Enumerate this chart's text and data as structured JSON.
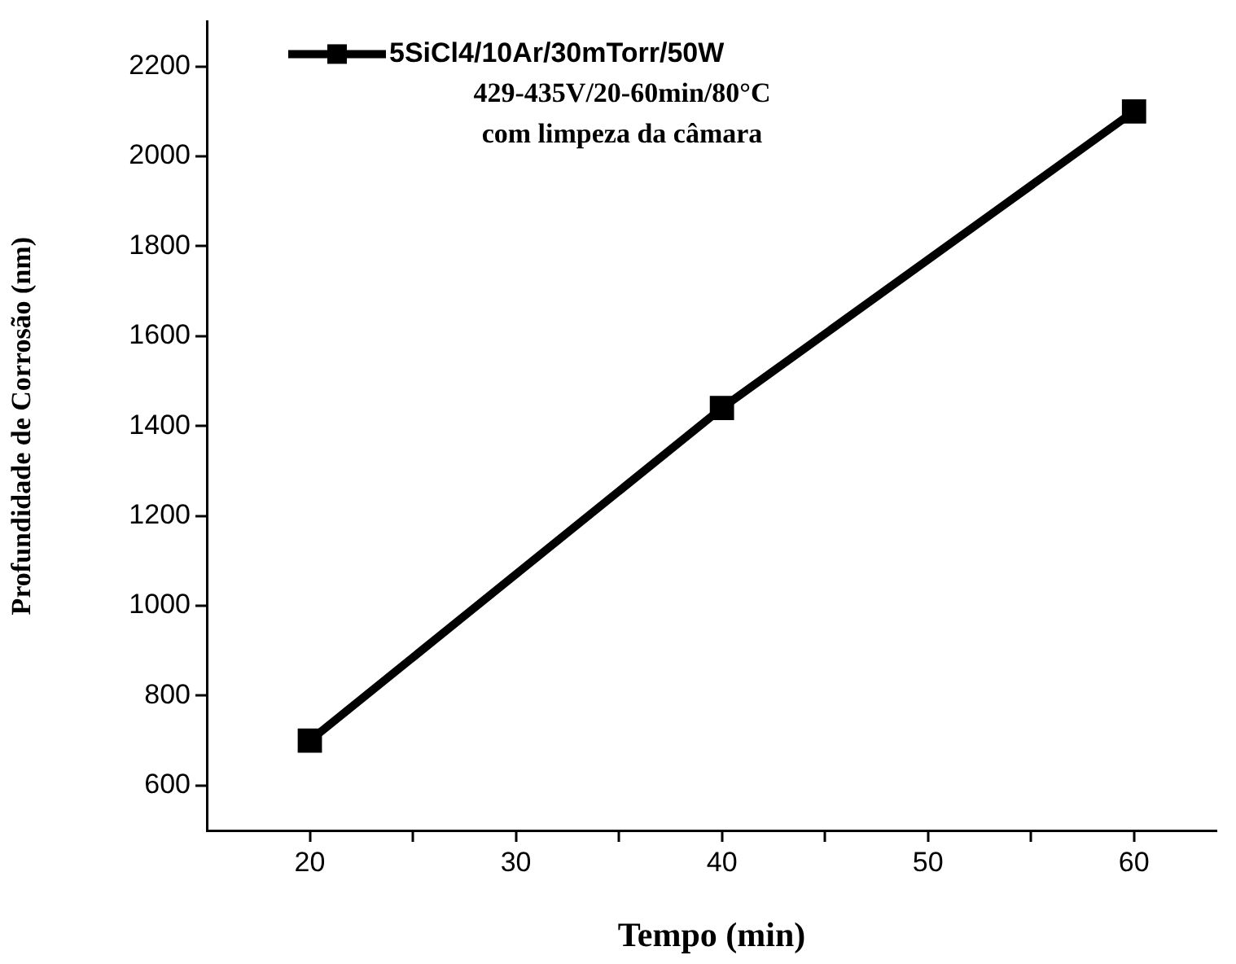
{
  "chart_data": {
    "type": "line",
    "xlabel": "Tempo (min)",
    "ylabel": "Profundidade de Corrosão (nm)",
    "x": [
      20,
      40,
      60
    ],
    "series": [
      {
        "name": "5SiCl4/10Ar/30mTorr/50W",
        "color": "#000000",
        "values": [
          700,
          1440,
          2100
        ]
      }
    ],
    "xlim": [
      15,
      64
    ],
    "ylim": [
      500,
      2300
    ],
    "xticks": [
      20,
      {
        "value": 25,
        "label": null
      },
      30,
      {
        "value": 35,
        "label": null
      },
      40,
      {
        "value": 45,
        "label": null
      },
      50,
      {
        "value": 55,
        "label": null
      },
      60
    ],
    "yticks": [
      600,
      800,
      1000,
      1200,
      1400,
      1600,
      1800,
      2000,
      2200
    ],
    "annotations": [
      "429-435V/20-60min/80°C",
      "com limpeza da câmara"
    ],
    "legend": "top left",
    "grid": false,
    "marker": "square",
    "line_style": "solid"
  }
}
